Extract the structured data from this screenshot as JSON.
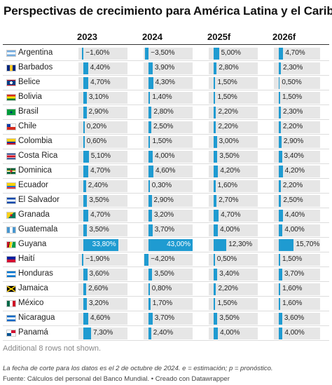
{
  "title": "Perspectivas de crecimiento para América Latina y el Caribe",
  "columns": [
    "2023",
    "2024",
    "2025f",
    "2026f"
  ],
  "colors": {
    "bar": "#1f9bd1",
    "track": "#e6e6e6"
  },
  "chart_data": {
    "type": "table",
    "title": "Perspectivas de crecimiento para América Latina y el Caribe",
    "columns": [
      "2023",
      "2024",
      "2025f",
      "2026f"
    ],
    "rows": [
      {
        "country": "Argentina",
        "flag": "flag-argentina",
        "values": [
          -1.6,
          -3.5,
          5.0,
          4.7
        ],
        "labels": [
          "−1,60%",
          "−3,50%",
          "5,00%",
          "4,70%"
        ]
      },
      {
        "country": "Barbados",
        "flag": "flag-barbados",
        "values": [
          4.4,
          3.9,
          2.8,
          2.3
        ],
        "labels": [
          "4,40%",
          "3,90%",
          "2,80%",
          "2,30%"
        ]
      },
      {
        "country": "Belice",
        "flag": "flag-belize",
        "values": [
          4.7,
          4.3,
          1.5,
          0.5
        ],
        "labels": [
          "4,70%",
          "4,30%",
          "1,50%",
          "0,50%"
        ]
      },
      {
        "country": "Bolivia",
        "flag": "flag-bolivia",
        "values": [
          3.1,
          1.4,
          1.5,
          1.5
        ],
        "labels": [
          "3,10%",
          "1,40%",
          "1,50%",
          "1,50%"
        ]
      },
      {
        "country": "Brasil",
        "flag": "flag-brazil",
        "values": [
          2.9,
          2.8,
          2.2,
          2.3
        ],
        "labels": [
          "2,90%",
          "2,80%",
          "2,20%",
          "2,30%"
        ]
      },
      {
        "country": "Chile",
        "flag": "flag-chile",
        "values": [
          0.2,
          2.5,
          2.2,
          2.2
        ],
        "labels": [
          "0,20%",
          "2,50%",
          "2,20%",
          "2,20%"
        ]
      },
      {
        "country": "Colombia",
        "flag": "flag-colombia",
        "values": [
          0.6,
          1.5,
          3.0,
          2.9
        ],
        "labels": [
          "0,60%",
          "1,50%",
          "3,00%",
          "2,90%"
        ]
      },
      {
        "country": "Costa Rica",
        "flag": "flag-costa-rica",
        "values": [
          5.1,
          4.0,
          3.5,
          3.4
        ],
        "labels": [
          "5,10%",
          "4,00%",
          "3,50%",
          "3,40%"
        ]
      },
      {
        "country": "Dominica",
        "flag": "flag-dominica",
        "values": [
          4.7,
          4.6,
          4.2,
          4.2
        ],
        "labels": [
          "4,70%",
          "4,60%",
          "4,20%",
          "4,20%"
        ]
      },
      {
        "country": "Ecuador",
        "flag": "flag-ecuador",
        "values": [
          2.4,
          0.3,
          1.6,
          2.2
        ],
        "labels": [
          "2,40%",
          "0,30%",
          "1,60%",
          "2,20%"
        ]
      },
      {
        "country": "El Salvador",
        "flag": "flag-el-salvador",
        "values": [
          3.5,
          2.9,
          2.7,
          2.5
        ],
        "labels": [
          "3,50%",
          "2,90%",
          "2,70%",
          "2,50%"
        ]
      },
      {
        "country": "Granada",
        "flag": "flag-grenada",
        "values": [
          4.7,
          3.2,
          4.7,
          4.4
        ],
        "labels": [
          "4,70%",
          "3,20%",
          "4,70%",
          "4,40%"
        ]
      },
      {
        "country": "Guatemala",
        "flag": "flag-guatemala",
        "values": [
          3.5,
          3.7,
          4.0,
          4.0
        ],
        "labels": [
          "3,50%",
          "3,70%",
          "4,00%",
          "4,00%"
        ]
      },
      {
        "country": "Guyana",
        "flag": "flag-guyana",
        "values": [
          33.8,
          43.0,
          12.3,
          15.7
        ],
        "labels": [
          "33,80%",
          "43,00%",
          "12,30%",
          "15,70%"
        ]
      },
      {
        "country": "Haití",
        "flag": "flag-haiti",
        "values": [
          -1.9,
          -4.2,
          0.5,
          1.5
        ],
        "labels": [
          "−1,90%",
          "−4,20%",
          "0,50%",
          "1,50%"
        ]
      },
      {
        "country": "Honduras",
        "flag": "flag-honduras",
        "values": [
          3.6,
          3.5,
          3.4,
          3.7
        ],
        "labels": [
          "3,60%",
          "3,50%",
          "3,40%",
          "3,70%"
        ]
      },
      {
        "country": "Jamaica",
        "flag": "flag-jamaica",
        "values": [
          2.6,
          0.8,
          2.2,
          1.6
        ],
        "labels": [
          "2,60%",
          "0,80%",
          "2,20%",
          "1,60%"
        ]
      },
      {
        "country": "México",
        "flag": "flag-mexico",
        "values": [
          3.2,
          1.7,
          1.5,
          1.6
        ],
        "labels": [
          "3,20%",
          "1,70%",
          "1,50%",
          "1,60%"
        ]
      },
      {
        "country": "Nicaragua",
        "flag": "flag-nicaragua",
        "values": [
          4.6,
          3.7,
          3.5,
          3.6
        ],
        "labels": [
          "4,60%",
          "3,70%",
          "3,50%",
          "3,60%"
        ]
      },
      {
        "country": "Panamá",
        "flag": "flag-panama",
        "values": [
          7.3,
          2.4,
          4.0,
          4.0
        ],
        "labels": [
          "7,30%",
          "2,40%",
          "4,00%",
          "4,00%"
        ]
      }
    ]
  },
  "note_hidden": "Additional 8 rows not shown.",
  "note": "La fecha de corte para los datos es el 2 de octubre de 2024. e = estimación; p = pronóstico.",
  "source": "Fuente: Cálculos del personal del Banco Mundial. • Creado con Datawrapper"
}
